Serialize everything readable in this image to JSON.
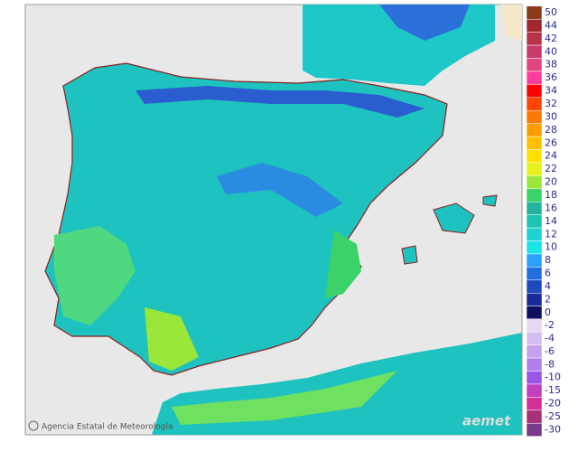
{
  "map": {
    "footer": "Agencia Estatal de Meteorología",
    "logo": "aemet",
    "legend": {
      "labels": [
        50,
        44,
        42,
        40,
        38,
        36,
        34,
        32,
        30,
        28,
        26,
        24,
        22,
        20,
        18,
        16,
        14,
        12,
        10,
        8,
        6,
        4,
        2,
        0
      ],
      "colors": [
        "#8b3a1a",
        "#a0282d",
        "#b8334a",
        "#c83a6a",
        "#e0457d",
        "#ff3c9b",
        "#ff0000",
        "#ff4500",
        "#ff7a00",
        "#ff9d00",
        "#ffbf00",
        "#ffe000",
        "#e6f01a",
        "#9be63a",
        "#3cd26a",
        "#22b49e",
        "#1fc4b0",
        "#1ed2d2",
        "#18e6e6",
        "#2aa0ff",
        "#1f6fe0",
        "#1e4ac0",
        "#1a2a9a",
        "#101060"
      ],
      "negative_labels": [
        -2,
        -4,
        -6,
        -8,
        -10,
        -15,
        -20,
        -25,
        -30
      ],
      "negative_colors": [
        "#e6d8f0",
        "#d4bdf0",
        "#c4a2ee",
        "#b080ea",
        "#9a55e6",
        "#c040c0",
        "#d0309a",
        "#a8327a",
        "#7a3a8a"
      ]
    }
  }
}
